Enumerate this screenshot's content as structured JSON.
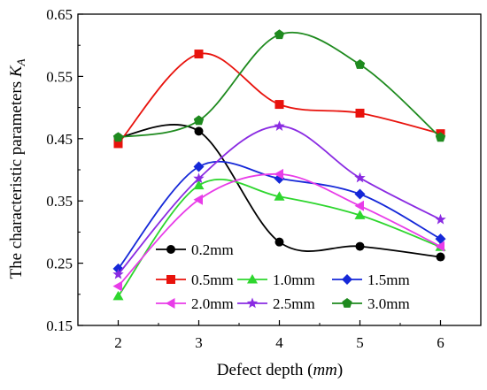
{
  "chart_data": {
    "type": "line",
    "title": "",
    "xlabel": "Defect depth (",
    "xlabel_unit": "mm",
    "xlabel_end": ")",
    "ylabel": "The characteristic parameters ",
    "ylabel_sym": "K",
    "ylabel_sub": "A",
    "x": [
      2,
      3,
      4,
      5,
      6
    ],
    "xlim": [
      1.5,
      6.5
    ],
    "ylim": [
      0.15,
      0.65
    ],
    "xticks": [
      "2",
      "3",
      "4",
      "5",
      "6"
    ],
    "yticks": [
      "0.15",
      "0.25",
      "0.35",
      "0.45",
      "0.55",
      "0.65"
    ],
    "grid": false,
    "legend_position": "bottom-right",
    "series": [
      {
        "name": "0.2mm",
        "color": "#000000",
        "marker": "circle",
        "values": [
          0.452,
          0.462,
          0.284,
          0.277,
          0.26
        ]
      },
      {
        "name": "0.5mm",
        "color": "#e8120c",
        "marker": "square",
        "values": [
          0.442,
          0.586,
          0.505,
          0.491,
          0.458
        ]
      },
      {
        "name": "1.0mm",
        "color": "#2ed62e",
        "marker": "triangle-up",
        "values": [
          0.197,
          0.375,
          0.357,
          0.327,
          0.276
        ]
      },
      {
        "name": "1.5mm",
        "color": "#1528d8",
        "marker": "diamond",
        "values": [
          0.241,
          0.405,
          0.386,
          0.361,
          0.289
        ]
      },
      {
        "name": "2.0mm",
        "color": "#e83ce8",
        "marker": "triangle-left",
        "values": [
          0.213,
          0.352,
          0.393,
          0.342,
          0.277
        ]
      },
      {
        "name": "2.5mm",
        "color": "#8a2be2",
        "marker": "star",
        "values": [
          0.232,
          0.386,
          0.47,
          0.387,
          0.32
        ]
      },
      {
        "name": "3.0mm",
        "color": "#1e8a1e",
        "marker": "pentagon",
        "values": [
          0.452,
          0.479,
          0.617,
          0.569,
          0.452
        ]
      }
    ]
  }
}
